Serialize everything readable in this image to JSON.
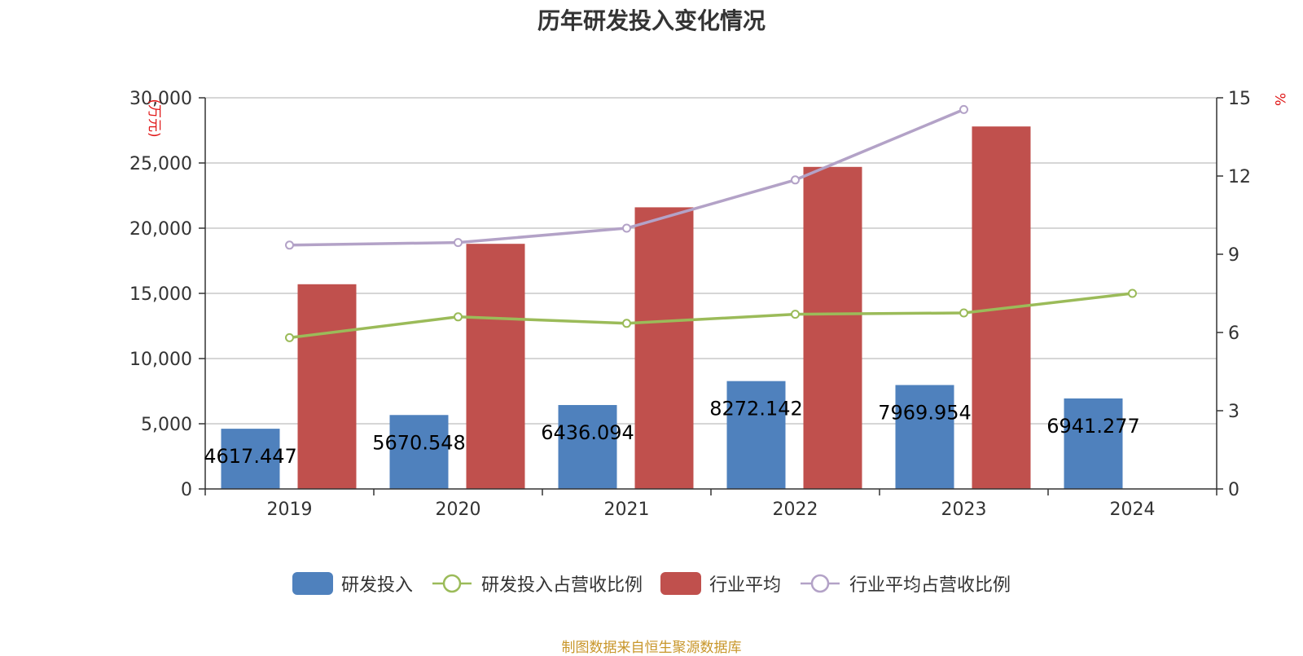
{
  "chart_data": {
    "type": "bar",
    "title": "历年研发投入变化情况",
    "categories": [
      "2019",
      "2020",
      "2021",
      "2022",
      "2023",
      "2024"
    ],
    "y_left": {
      "unit": "(万元)",
      "ylim": [
        0,
        30000
      ],
      "ticks": [
        "0",
        "5,000",
        "10,000",
        "15,000",
        "20,000",
        "25,000",
        "30,000"
      ],
      "tick_values": [
        0,
        5000,
        10000,
        15000,
        20000,
        25000,
        30000
      ]
    },
    "y_right": {
      "unit": "%",
      "ylim": [
        0,
        15
      ],
      "ticks": [
        "0",
        "3",
        "6",
        "9",
        "12",
        "15"
      ],
      "tick_values": [
        0,
        3,
        6,
        9,
        12,
        15
      ]
    },
    "grid": true,
    "legend_position": "bottom",
    "series": [
      {
        "name": "研发投入",
        "kind": "bar",
        "axis": "left",
        "color": "#4f81bd",
        "values": [
          4617.447,
          5670.548,
          6436.094,
          8272.142,
          7969.954,
          6941.277
        ],
        "labels": [
          "4617.447",
          "5670.548",
          "6436.094",
          "8272.142",
          "7969.954",
          "6941.277"
        ]
      },
      {
        "name": "研发投入占营收比例",
        "kind": "line",
        "axis": "right",
        "color": "#9bbb59",
        "values": [
          5.8,
          6.6,
          6.35,
          6.7,
          6.75,
          7.5
        ]
      },
      {
        "name": "行业平均",
        "kind": "bar",
        "axis": "left",
        "color": "#c0504d",
        "values": [
          15700,
          18800,
          21600,
          24700,
          27800,
          null
        ]
      },
      {
        "name": "行业平均占营收比例",
        "kind": "line",
        "axis": "right",
        "color": "#b3a2c7",
        "values": [
          9.35,
          9.45,
          10.0,
          11.85,
          14.55,
          null
        ]
      }
    ]
  },
  "source": "制图数据来自恒生聚源数据库"
}
